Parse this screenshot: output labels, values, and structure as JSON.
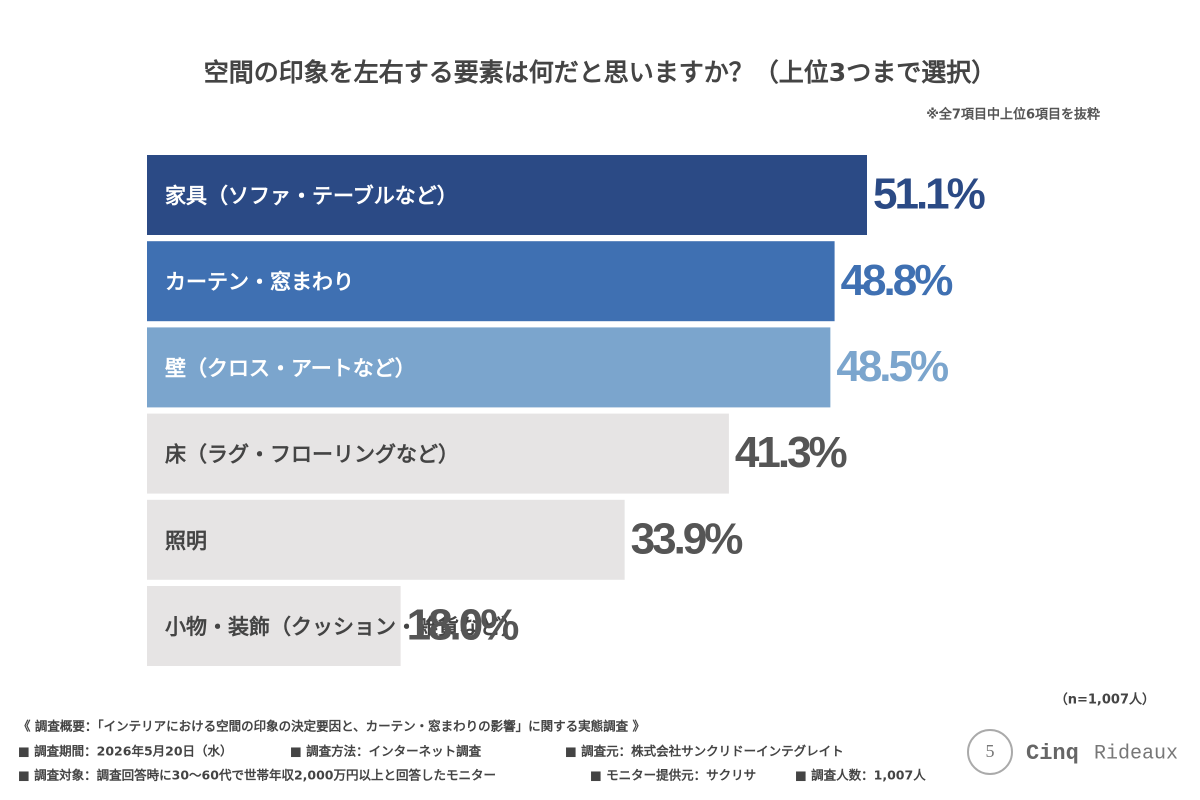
{
  "chart_data": {
    "type": "bar",
    "orientation": "horizontal",
    "title": "空間の印象を左右する要素は何だと思いますか？（上位3つまで選択）",
    "subtitle": "※全7項目中上位6項目を抜粋",
    "categories": [
      "家具（ソファ・テーブルなど）",
      "カーテン・窓まわり",
      "壁（クロス・アートなど）",
      "床（ラグ・フローリングなど）",
      "照明",
      "小物・装飾（クッション・雑貨など）"
    ],
    "values": [
      51.1,
      48.8,
      48.5,
      41.3,
      33.9,
      18.0
    ],
    "value_labels": [
      "51.1%",
      "48.8%",
      "48.5%",
      "41.3%",
      "33.9%",
      "18.0%"
    ],
    "colors": [
      "#2b4a85",
      "#3f70b2",
      "#7ba5cd",
      "#e6e4e4",
      "#e6e4e4",
      "#e6e4e4"
    ],
    "label_colors": [
      "#ffffff",
      "#ffffff",
      "#ffffff",
      "#444444",
      "#444444",
      "#444444"
    ],
    "value_label_colors": [
      "#2b4a85",
      "#3f70b2",
      "#7ba5cd",
      "#555555",
      "#555555",
      "#555555"
    ],
    "note": "（n=1,007人）"
  },
  "footer": {
    "heading": "《 調査概要：「インテリアにおける空間の印象の決定要因と、カーテン・窓まわりの影響」に関する実態調査 》",
    "rows": [
      [
        "■ 調査期間：2026年5月20日（水）",
        "■ 調査方法：インターネット調査",
        "■ 調査元：株式会社サンクリドーインテグレイト"
      ],
      [
        "■ 調査対象：調査回答時に30〜60代で世帯年収2,000万円以上と回答したモニター",
        "■ モニター提供元：サクリサ",
        "■ 調査人数：1,007人"
      ]
    ]
  },
  "logo": {
    "badge": "5",
    "name": "Cinq",
    "name2": "Rideaux"
  }
}
